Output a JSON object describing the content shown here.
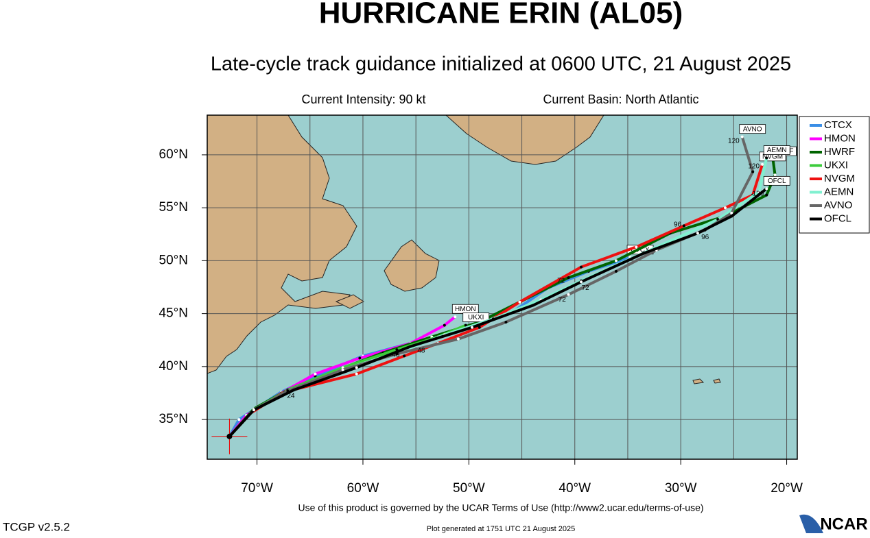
{
  "chart_data": {
    "type": "line",
    "title": "HURRICANE ERIN (AL05)",
    "subtitle": "Late-cycle track guidance initialized at 0600 UTC, 21 August 2025",
    "intensity": "Current Intensity: 90 kt",
    "basin": "Current Basin: North Atlantic",
    "footer": "Use of this product is governed by the UCAR Terms of Use (http://www2.ucar.edu/terms-of-use)",
    "version": "TCGP v2.5.2",
    "generated": "Plot generated at 1751 UTC   21 August 2025",
    "logo": "NCAR",
    "xlim": [
      -74.7,
      -19.0
    ],
    "ylim": [
      31.25,
      63.75
    ],
    "xticks": [
      {
        "value": -70,
        "label": "70°W"
      },
      {
        "value": -60,
        "label": "60°W"
      },
      {
        "value": -50,
        "label": "50°W"
      },
      {
        "value": -40,
        "label": "40°W"
      },
      {
        "value": -30,
        "label": "30°W"
      },
      {
        "value": -20,
        "label": "20°W"
      }
    ],
    "xminor": [
      -65,
      -55,
      -45,
      -35,
      -25
    ],
    "yticks": [
      {
        "value": 35,
        "label": "35°N"
      },
      {
        "value": 40,
        "label": "40°N"
      },
      {
        "value": 45,
        "label": "45°N"
      },
      {
        "value": 50,
        "label": "50°N"
      },
      {
        "value": 55,
        "label": "55°N"
      },
      {
        "value": 60,
        "label": "60°N"
      }
    ],
    "grid": true,
    "legend": "right",
    "series": [
      {
        "name": "CTCX",
        "color": "#3a8ee6",
        "x": [
          -72.6,
          -71.7,
          -70.3,
          -67.7,
          -64.5,
          -60.0,
          -55.5,
          -49.7,
          -45.8,
          -42.6,
          -38.7,
          -34.8
        ],
        "values": [
          33.4,
          35.0,
          35.9,
          37.6,
          39.1,
          41.0,
          42.2,
          43.7,
          45.2,
          47.4,
          49.0,
          50.3
        ]
      },
      {
        "name": "HMON",
        "color": "#ff00ff",
        "x": [
          -72.6,
          -71.0,
          -67.7,
          -64.5,
          -60.3,
          -55.5,
          -52.3,
          -51.3
        ],
        "values": [
          33.4,
          35.4,
          37.5,
          39.3,
          40.8,
          42.2,
          43.9,
          44.7
        ]
      },
      {
        "name": "HWRF",
        "color": "#006400",
        "x": [
          -72.6,
          -70.3,
          -67.1,
          -62.6,
          -58.1,
          -53.5,
          -49.0,
          -45.2,
          -40.6,
          -36.1,
          -31.0,
          -25.8,
          -21.9,
          -21.1,
          -21.3
        ],
        "values": [
          33.4,
          36.0,
          37.8,
          39.6,
          41.3,
          42.8,
          44.2,
          46.1,
          48.4,
          50.0,
          52.6,
          54.2,
          56.2,
          58.1,
          59.6
        ]
      },
      {
        "name": "UKXI",
        "color": "#3ccc3c",
        "x": [
          -72.6,
          -70.3,
          -67.1,
          -61.9,
          -56.8,
          -52.9,
          -50.3
        ],
        "values": [
          33.4,
          35.9,
          37.8,
          39.9,
          41.6,
          42.8,
          43.9
        ]
      },
      {
        "name": "NVGM",
        "color": "#ee1111",
        "x": [
          -72.6,
          -70.6,
          -67.4,
          -60.6,
          -56.1,
          -52.9,
          -49.0,
          -45.2,
          -39.4,
          -34.2,
          -29.7,
          -25.8,
          -23.2,
          -22.3
        ],
        "values": [
          33.4,
          35.6,
          37.6,
          39.3,
          41.0,
          42.2,
          43.7,
          46.1,
          49.4,
          51.3,
          53.3,
          55.0,
          56.2,
          59.1
        ]
      },
      {
        "name": "AEMN",
        "color": "#80f0d0",
        "x": [
          -72.6,
          -70.3,
          -67.1,
          -61.9,
          -56.8,
          -52.3,
          -47.7,
          -43.2,
          -39.4,
          -32.9,
          -26.5,
          -22.6,
          -21.9
        ],
        "values": [
          33.4,
          35.9,
          37.7,
          39.7,
          41.3,
          43.0,
          44.5,
          46.3,
          48.1,
          51.0,
          53.9,
          56.5,
          59.7
        ]
      },
      {
        "name": "AVNO",
        "color": "#666666",
        "x": [
          -72.6,
          -70.3,
          -67.1,
          -61.9,
          -56.8,
          -51.0,
          -46.5,
          -40.6,
          -36.1,
          -32.3,
          -27.7,
          -25.2,
          -23.2,
          -24.2
        ],
        "values": [
          33.4,
          35.9,
          37.7,
          39.7,
          41.2,
          42.6,
          44.2,
          46.8,
          49.0,
          51.0,
          52.9,
          54.5,
          58.4,
          61.7
        ]
      },
      {
        "name": "OFCL",
        "color": "#000000",
        "x": [
          -72.6,
          -70.3,
          -66.5,
          -60.6,
          -55.5,
          -49.7,
          -43.9,
          -39.4,
          -33.5,
          -28.4,
          -25.2,
          -21.9
        ],
        "values": [
          33.4,
          35.9,
          37.8,
          39.9,
          41.9,
          43.7,
          45.8,
          48.0,
          50.7,
          52.6,
          54.2,
          56.8
        ]
      }
    ],
    "annotations": [
      {
        "text": "24",
        "x": -66.8,
        "y": 37.2
      },
      {
        "text": "48",
        "x": -56.9,
        "y": 41.1
      },
      {
        "text": "48",
        "x": -54.5,
        "y": 41.5
      },
      {
        "text": "72",
        "x": -41.3,
        "y": 48.1
      },
      {
        "text": "72",
        "x": -41.2,
        "y": 46.3
      },
      {
        "text": "72",
        "x": -39.0,
        "y": 47.4
      },
      {
        "text": "96",
        "x": -30.3,
        "y": 53.4
      },
      {
        "text": "96",
        "x": -27.7,
        "y": 52.2
      },
      {
        "text": "120",
        "x": -25.0,
        "y": 61.3
      },
      {
        "text": "120",
        "x": -23.1,
        "y": 58.9
      },
      {
        "text": "120",
        "x": -22.7,
        "y": 56.3
      }
    ]
  }
}
